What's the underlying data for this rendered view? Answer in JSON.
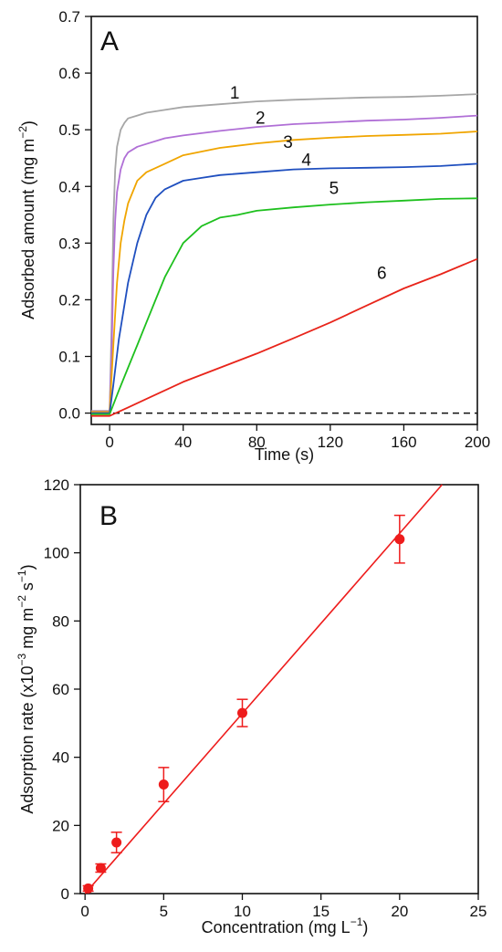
{
  "chart_data": [
    {
      "panel": "A",
      "type": "line",
      "xlabel": "Time (s)",
      "ylabel": "Adsorbed amount (mg m",
      "ylabel_sup": "−2",
      "ylabel_close": ")",
      "xlim": [
        -10,
        200
      ],
      "ylim": [
        -0.02,
        0.7
      ],
      "x_ticks": [
        "0",
        "40",
        "80",
        "120",
        "160",
        "200"
      ],
      "x_tick_values": [
        0,
        40,
        80,
        120,
        160,
        200
      ],
      "y_ticks": [
        "0.0",
        "0.1",
        "0.2",
        "0.3",
        "0.4",
        "0.5",
        "0.6",
        "0.7"
      ],
      "y_tick_values": [
        0.0,
        0.1,
        0.2,
        0.3,
        0.4,
        0.5,
        0.6,
        0.7
      ],
      "baseline": {
        "y": 0.0,
        "style": "dashed"
      },
      "series": [
        {
          "name": "1",
          "color": "#a6a6a6",
          "x": [
            -10,
            0,
            1,
            2,
            3,
            4,
            6,
            8,
            10,
            15,
            20,
            30,
            40,
            60,
            80,
            100,
            120,
            140,
            160,
            180,
            200
          ],
          "y": [
            0.004,
            0.004,
            0.15,
            0.34,
            0.43,
            0.47,
            0.5,
            0.512,
            0.52,
            0.525,
            0.53,
            0.535,
            0.54,
            0.545,
            0.55,
            0.553,
            0.555,
            0.557,
            0.558,
            0.56,
            0.563
          ]
        },
        {
          "name": "2",
          "color": "#b06fd6",
          "x": [
            -10,
            0,
            1,
            2,
            3,
            4,
            6,
            8,
            10,
            15,
            20,
            30,
            40,
            60,
            80,
            100,
            120,
            140,
            160,
            180,
            200
          ],
          "y": [
            0.003,
            0.003,
            0.1,
            0.25,
            0.34,
            0.39,
            0.43,
            0.45,
            0.46,
            0.47,
            0.475,
            0.485,
            0.49,
            0.498,
            0.505,
            0.51,
            0.513,
            0.516,
            0.518,
            0.521,
            0.525
          ]
        },
        {
          "name": "3",
          "color": "#f0a500",
          "x": [
            -10,
            0,
            2,
            4,
            6,
            8,
            10,
            15,
            20,
            30,
            40,
            60,
            80,
            100,
            120,
            140,
            160,
            180,
            200
          ],
          "y": [
            0.002,
            0.002,
            0.12,
            0.23,
            0.3,
            0.34,
            0.37,
            0.41,
            0.425,
            0.44,
            0.455,
            0.468,
            0.476,
            0.482,
            0.486,
            0.489,
            0.491,
            0.493,
            0.497
          ]
        },
        {
          "name": "4",
          "color": "#1f4fbf",
          "x": [
            -10,
            0,
            2,
            5,
            10,
            15,
            20,
            25,
            30,
            40,
            50,
            60,
            80,
            100,
            120,
            140,
            160,
            180,
            200
          ],
          "y": [
            0.0,
            0.0,
            0.05,
            0.13,
            0.23,
            0.3,
            0.35,
            0.38,
            0.395,
            0.41,
            0.415,
            0.42,
            0.425,
            0.43,
            0.432,
            0.433,
            0.434,
            0.436,
            0.44
          ]
        },
        {
          "name": "5",
          "color": "#1ec01e",
          "x": [
            -10,
            0,
            5,
            10,
            15,
            20,
            25,
            30,
            35,
            40,
            50,
            60,
            70,
            80,
            100,
            120,
            140,
            160,
            180,
            200
          ],
          "y": [
            -0.002,
            -0.002,
            0.04,
            0.08,
            0.12,
            0.16,
            0.2,
            0.24,
            0.27,
            0.3,
            0.33,
            0.345,
            0.35,
            0.357,
            0.363,
            0.368,
            0.372,
            0.375,
            0.378,
            0.379
          ]
        },
        {
          "name": "6",
          "color": "#e8241a",
          "x": [
            -10,
            0,
            10,
            20,
            40,
            60,
            80,
            100,
            120,
            140,
            160,
            180,
            200
          ],
          "y": [
            -0.005,
            -0.005,
            0.01,
            0.025,
            0.055,
            0.08,
            0.105,
            0.132,
            0.16,
            0.19,
            0.22,
            0.245,
            0.272
          ]
        }
      ],
      "curve_labels": [
        {
          "text": "1",
          "x": 68,
          "y": 0.555
        },
        {
          "text": "2",
          "x": 82,
          "y": 0.511
        },
        {
          "text": "3",
          "x": 97,
          "y": 0.468
        },
        {
          "text": "4",
          "x": 107,
          "y": 0.437
        },
        {
          "text": "5",
          "x": 122,
          "y": 0.387
        },
        {
          "text": "6",
          "x": 148,
          "y": 0.237
        }
      ]
    },
    {
      "panel": "B",
      "type": "scatter",
      "xlabel": "Concentration (mg L",
      "xlabel_sup": "−1",
      "xlabel_close": ")",
      "ylabel": "Adsorption rate (x10",
      "ylabel_sup1": "−3",
      "ylabel_mid": " mg m",
      "ylabel_sup2": "−2",
      "ylabel_mid2": " s",
      "ylabel_sup3": "−1",
      "ylabel_close": ")",
      "xlim": [
        -0.3,
        25
      ],
      "ylim": [
        0,
        120
      ],
      "x_ticks": [
        "0",
        "5",
        "10",
        "15",
        "20",
        "25"
      ],
      "x_tick_values": [
        0,
        5,
        10,
        15,
        20,
        25
      ],
      "y_ticks": [
        "0",
        "20",
        "40",
        "60",
        "80",
        "100",
        "120"
      ],
      "y_tick_values": [
        0,
        20,
        40,
        60,
        80,
        100,
        120
      ],
      "color": "#ee1c1c",
      "points": [
        {
          "x": 0.2,
          "y": 1.5,
          "err": 0.8
        },
        {
          "x": 1,
          "y": 7.5,
          "err": 1.2
        },
        {
          "x": 2,
          "y": 15,
          "err": 3
        },
        {
          "x": 5,
          "y": 32,
          "err": 5
        },
        {
          "x": 10,
          "y": 53,
          "err": 4
        },
        {
          "x": 20,
          "y": 104,
          "err": 7
        }
      ],
      "fit_line": {
        "x": [
          0,
          22.7
        ],
        "y": [
          0,
          120
        ]
      }
    }
  ]
}
